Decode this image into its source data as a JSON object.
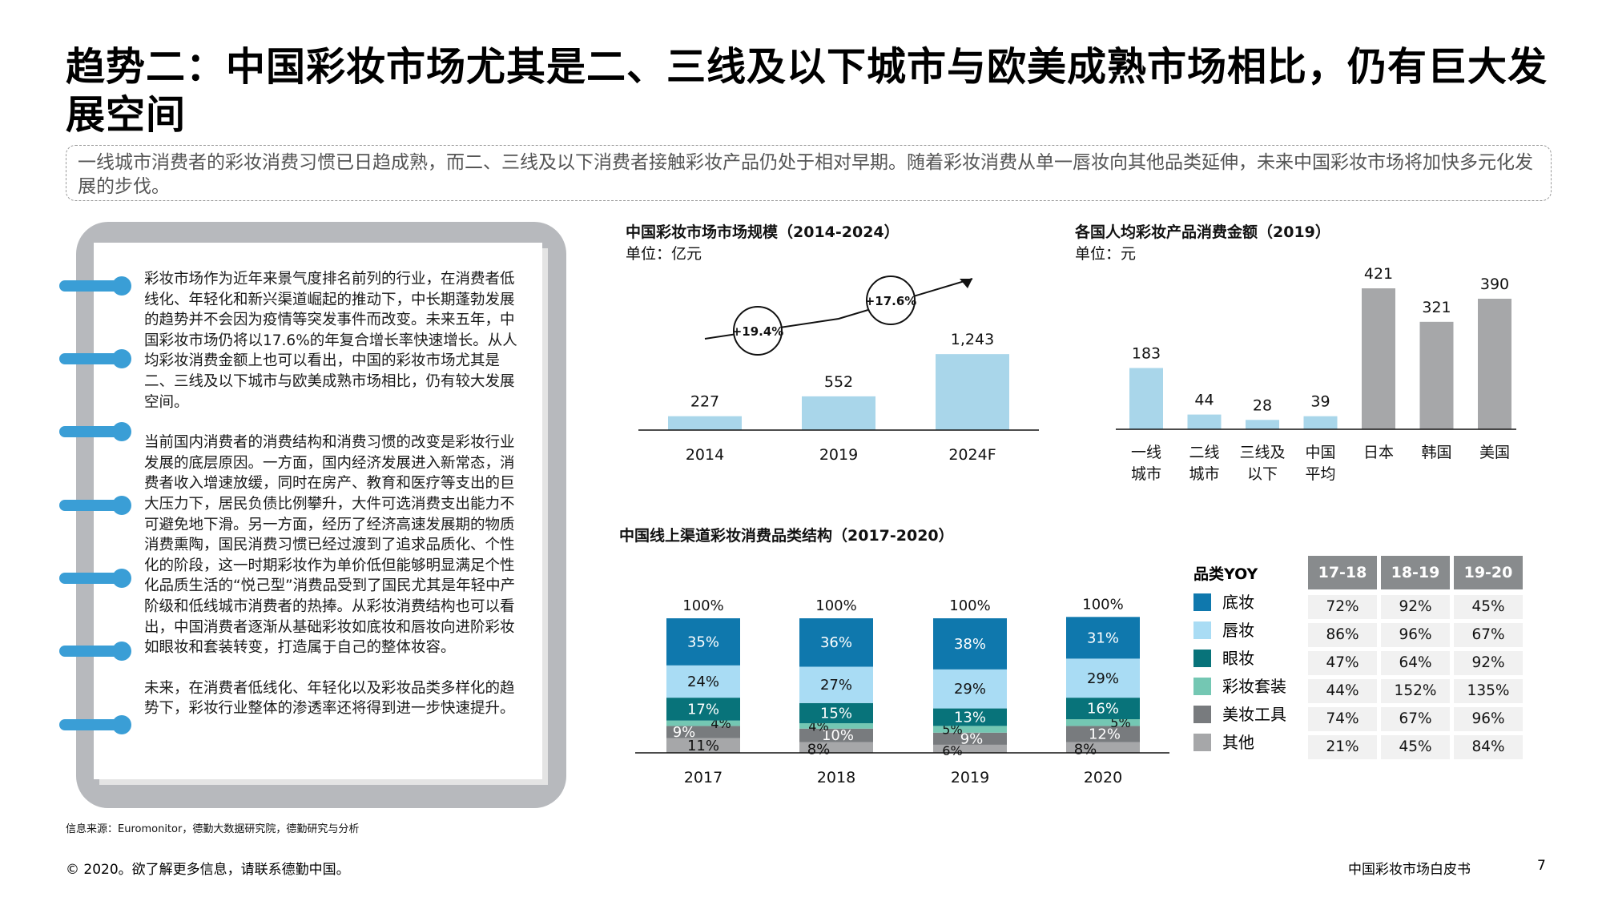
{
  "title": "趋势二：中国彩妆市场尤其是二、三线及以下城市与欧美成熟市场相比，仍有巨大发展空间",
  "intro": "一线城市消费者的彩妆消费习惯已日趋成熟，而二、三线及以下消费者接触彩妆产品仍处于相对早期。随着彩妆消费从单一唇妆向其他品类延伸，未来中国彩妆市场将加快多元化发展的步伐。",
  "body": [
    "彩妆市场作为近年来景气度排名前列的行业，在消费者低线化、年轻化和新兴渠道崛起的推动下，中长期蓬勃发展的趋势并不会因为疫情等突发事件而改变。未来五年，中国彩妆市场仍将以17.6%的年复合增长率快速增长。从人均彩妆消费金额上也可以看出，中国的彩妆市场尤其是二、三线及以下城市与欧美成熟市场相比，仍有较大发展空间。",
    "当前国内消费者的消费结构和消费习惯的改变是彩妆行业发展的底层原因。一方面，国内经济发展进入新常态，消费者收入增速放缓，同时在房产、教育和医疗等支出的巨大压力下，居民负债比例攀升，大件可选消费支出能力不可避免地下滑。另一方面，经历了经济高速发展期的物质消费熏陶，国民消费习惯已经过渡到了追求品质化、个性化的阶段，这一时期彩妆作为单价低但能够明显满足个性化品质生活的“悦己型”消费品受到了国民尤其是年轻中产阶级和低线城市消费者的热捧。从彩妆消费结构也可以看出，中国消费者逐渐从基础彩妆如底妆和唇妆向进阶彩妆如眼妆和套装转变，打造属于自己的整体妆容。",
    "未来，在消费者低线化、年轻化以及彩妆品类多样化的趋势下，彩妆行业整体的渗透率还将得到进一步快速提升。"
  ],
  "chart_data": [
    {
      "type": "bar",
      "title": "中国彩妆市场市场规模（2014-2024）",
      "unit": "单位：亿元",
      "categories": [
        "2014",
        "2019",
        "2024F"
      ],
      "values": [
        227,
        552,
        1243
      ],
      "labels": [
        "227",
        "552",
        "1,243"
      ],
      "annotations": [
        "+19.4%",
        "+17.6%"
      ],
      "color": "#a9d6ea"
    },
    {
      "type": "bar",
      "title": "各国人均彩妆产品消费金额（2019）",
      "unit": "单位：元",
      "categories": [
        "一线|城市",
        "二线|城市",
        "三线及|以下",
        "中国|平均",
        "日本",
        "韩国",
        "美国"
      ],
      "values": [
        183,
        44,
        28,
        39,
        421,
        321,
        390
      ],
      "colors": [
        "#a9d6ea",
        "#a9d6ea",
        "#a9d6ea",
        "#a9d6ea",
        "#a6a7a9",
        "#a6a7a9",
        "#a6a7a9"
      ]
    },
    {
      "type": "bar",
      "stacked": true,
      "title": "中国线上渠道彩妆消费品类结构（2017-2020）",
      "categories": [
        "2017",
        "2018",
        "2019",
        "2020"
      ],
      "totals": [
        "100%",
        "100%",
        "100%",
        "100%"
      ],
      "series": [
        {
          "name": "其他",
          "values": [
            11,
            8,
            6,
            8
          ],
          "color": "#a6a7a9"
        },
        {
          "name": "美妆工具",
          "values": [
            9,
            10,
            9,
            12
          ],
          "color": "#787b7e"
        },
        {
          "name": "彩妆套装",
          "values": [
            4,
            4,
            5,
            5
          ],
          "color": "#74c7b3"
        },
        {
          "name": "眼妆",
          "values": [
            17,
            15,
            13,
            16
          ],
          "color": "#08737a"
        },
        {
          "name": "唇妆",
          "values": [
            24,
            27,
            29,
            29
          ],
          "color": "#a9dcf4"
        },
        {
          "name": "底妆",
          "values": [
            35,
            36,
            38,
            31
          ],
          "color": "#0f78ad"
        }
      ]
    }
  ],
  "yoy": {
    "header": "品类YOY",
    "columns": [
      "17-18",
      "18-19",
      "19-20"
    ],
    "rows": [
      {
        "name": "底妆",
        "values": [
          "72%",
          "92%",
          "45%"
        ]
      },
      {
        "name": "唇妆",
        "values": [
          "86%",
          "96%",
          "67%"
        ]
      },
      {
        "name": "眼妆",
        "values": [
          "47%",
          "64%",
          "92%"
        ]
      },
      {
        "name": "彩妆套装",
        "values": [
          "44%",
          "152%",
          "135%"
        ]
      },
      {
        "name": "美妆工具",
        "values": [
          "74%",
          "67%",
          "96%"
        ]
      },
      {
        "name": "其他",
        "values": [
          "21%",
          "45%",
          "84%"
        ]
      }
    ]
  },
  "colors": {
    "accent_blue": "#3a9ed6",
    "light_blue": "#a9d6ea",
    "gray_bar": "#a6a7a9",
    "table_header": "#888b8d"
  },
  "footer": {
    "source": "信息来源：Euromonitor，德勤大数据研究院，德勤研究与分析",
    "copyright": "© 2020。欲了解更多信息，请联系德勤中国。",
    "doc_title": "中国彩妆市场白皮书",
    "page": "7"
  }
}
